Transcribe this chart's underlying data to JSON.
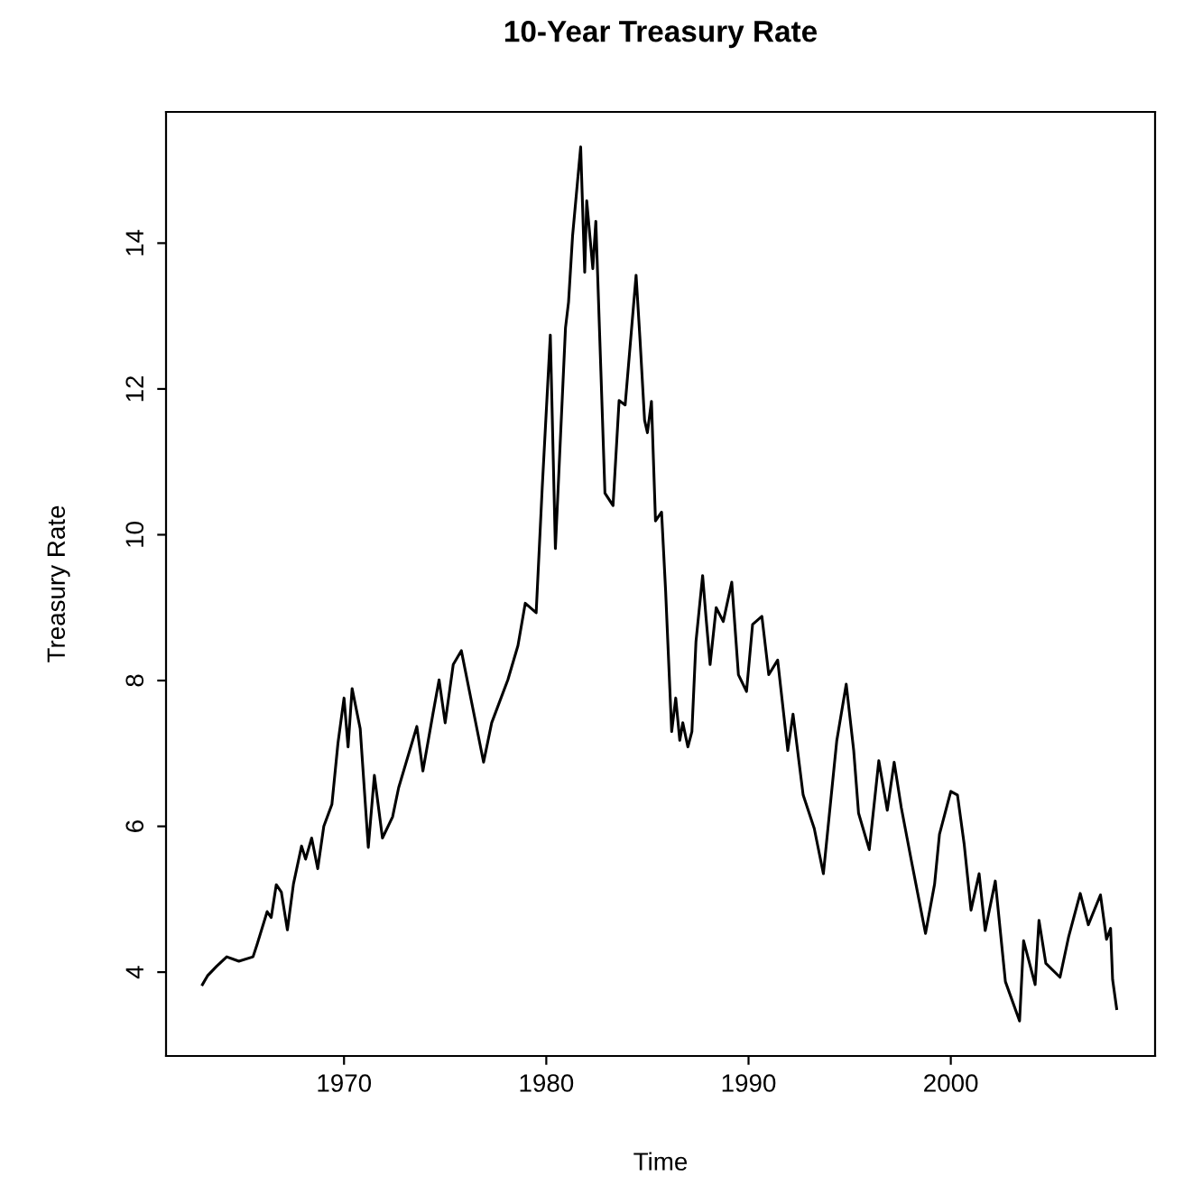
{
  "chart_data": {
    "type": "line",
    "title": "10-Year Treasury Rate",
    "xlabel": "Time",
    "ylabel": "Treasury Rate",
    "x": [
      1963.0,
      1963.25,
      1963.7,
      1964.2,
      1964.8,
      1965.5,
      1965.7,
      1966.2,
      1966.4,
      1966.65,
      1966.9,
      1967.2,
      1967.5,
      1967.9,
      1968.1,
      1968.4,
      1968.7,
      1969.0,
      1969.4,
      1969.7,
      1970.0,
      1970.2,
      1970.4,
      1970.8,
      1971.2,
      1971.5,
      1971.9,
      1972.4,
      1972.7,
      1973.6,
      1973.9,
      1974.4,
      1974.7,
      1975.0,
      1975.4,
      1975.8,
      1976.9,
      1977.3,
      1978.1,
      1978.6,
      1978.96,
      1979.5,
      1979.8,
      1980.2,
      1980.45,
      1980.95,
      1981.1,
      1981.3,
      1981.7,
      1981.9,
      1982.0,
      1982.3,
      1982.45,
      1982.7,
      1982.9,
      1983.3,
      1983.6,
      1983.9,
      1984.44,
      1984.64,
      1984.86,
      1985.0,
      1985.2,
      1985.4,
      1985.7,
      1985.9,
      1986.2,
      1986.4,
      1986.6,
      1986.75,
      1987.0,
      1987.2,
      1987.4,
      1987.73,
      1987.9,
      1988.1,
      1988.4,
      1988.75,
      1989.17,
      1989.5,
      1989.9,
      1990.2,
      1990.66,
      1991.0,
      1991.44,
      1991.94,
      1992.2,
      1992.7,
      1993.25,
      1993.7,
      1994.36,
      1994.83,
      1995.2,
      1995.44,
      1995.97,
      1996.44,
      1996.86,
      1997.2,
      1997.55,
      1998.05,
      1998.75,
      1999.2,
      1999.44,
      2000.0,
      2000.33,
      2000.66,
      2001.0,
      2001.4,
      2001.7,
      2002.2,
      2002.7,
      2003.4,
      2003.6,
      2004.17,
      2004.36,
      2004.7,
      2005.4,
      2005.83,
      2006.4,
      2006.8,
      2007.4,
      2007.7,
      2007.9,
      2008.0,
      2008.2
    ],
    "series": [
      {
        "color": "#000000",
        "values": [
          3.83,
          3.95,
          4.08,
          4.21,
          4.15,
          4.21,
          4.38,
          4.83,
          4.75,
          5.2,
          5.1,
          4.58,
          5.21,
          5.73,
          5.55,
          5.84,
          5.42,
          6.0,
          6.3,
          7.14,
          7.76,
          7.09,
          7.89,
          7.34,
          5.71,
          6.7,
          5.84,
          6.13,
          6.53,
          7.37,
          6.76,
          7.55,
          8.01,
          7.42,
          8.22,
          8.41,
          6.88,
          7.42,
          8.01,
          8.48,
          9.06,
          8.93,
          10.65,
          12.74,
          9.81,
          12.84,
          13.19,
          14.1,
          15.32,
          13.6,
          14.58,
          13.65,
          14.3,
          12.24,
          10.57,
          10.4,
          11.84,
          11.78,
          13.56,
          12.65,
          11.57,
          11.4,
          11.83,
          10.19,
          10.31,
          9.23,
          7.3,
          7.76,
          7.18,
          7.42,
          7.09,
          7.3,
          8.53,
          9.44,
          8.86,
          8.22,
          9.0,
          8.81,
          9.35,
          8.08,
          7.85,
          8.77,
          8.88,
          8.08,
          8.28,
          7.04,
          7.54,
          6.43,
          5.97,
          5.35,
          7.17,
          7.95,
          7.04,
          6.18,
          5.68,
          6.9,
          6.22,
          6.88,
          6.26,
          5.53,
          4.53,
          5.21,
          5.89,
          6.48,
          6.43,
          5.76,
          4.85,
          5.35,
          4.57,
          5.25,
          3.87,
          3.33,
          4.43,
          3.83,
          4.71,
          4.12,
          3.93,
          4.49,
          5.08,
          4.65,
          5.06,
          4.45,
          4.6,
          3.9,
          3.5
        ]
      }
    ],
    "xlim": [
      1961.2,
      2010.1
    ],
    "ylim": [
      2.85,
      15.8
    ],
    "xticks": [
      1970,
      1980,
      1990,
      2000
    ],
    "yticks": [
      4,
      6,
      8,
      10,
      12,
      14
    ],
    "grid": false
  }
}
